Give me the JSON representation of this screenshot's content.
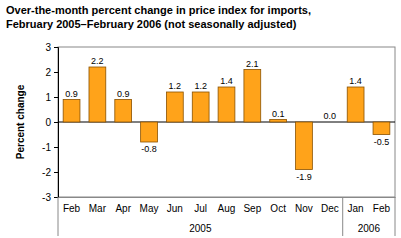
{
  "chart_data": {
    "type": "bar",
    "title": [
      "Over-the-month percent change in price index for imports,",
      "February 2005–February 2006 (not seasonally adjusted)"
    ],
    "y_label": "Percent change",
    "categories": [
      "Feb",
      "Mar",
      "Apr",
      "May",
      "Jun",
      "Jul",
      "Aug",
      "Sep",
      "Oct",
      "Nov",
      "Dec",
      "Jan",
      "Feb"
    ],
    "values": [
      0.9,
      2.2,
      0.9,
      -0.8,
      1.2,
      1.2,
      1.4,
      2.1,
      0.1,
      -1.9,
      0.0,
      1.4,
      -0.5
    ],
    "value_labels": [
      "0.9",
      "2.2",
      "0.9",
      "-0.8",
      "1.2",
      "1.2",
      "1.4",
      "2.1",
      "0.1",
      "-1.9",
      "0.0",
      "1.4",
      "-0.5"
    ],
    "groups": [
      {
        "name": "2005",
        "count": 11
      },
      {
        "name": "2006",
        "count": 2
      }
    ],
    "color": "#ffa31a",
    "ylim": [
      -3,
      3
    ],
    "yticks": [
      -3,
      -2,
      -1,
      0,
      1,
      2,
      3
    ],
    "grid": false,
    "data_labels": true
  }
}
